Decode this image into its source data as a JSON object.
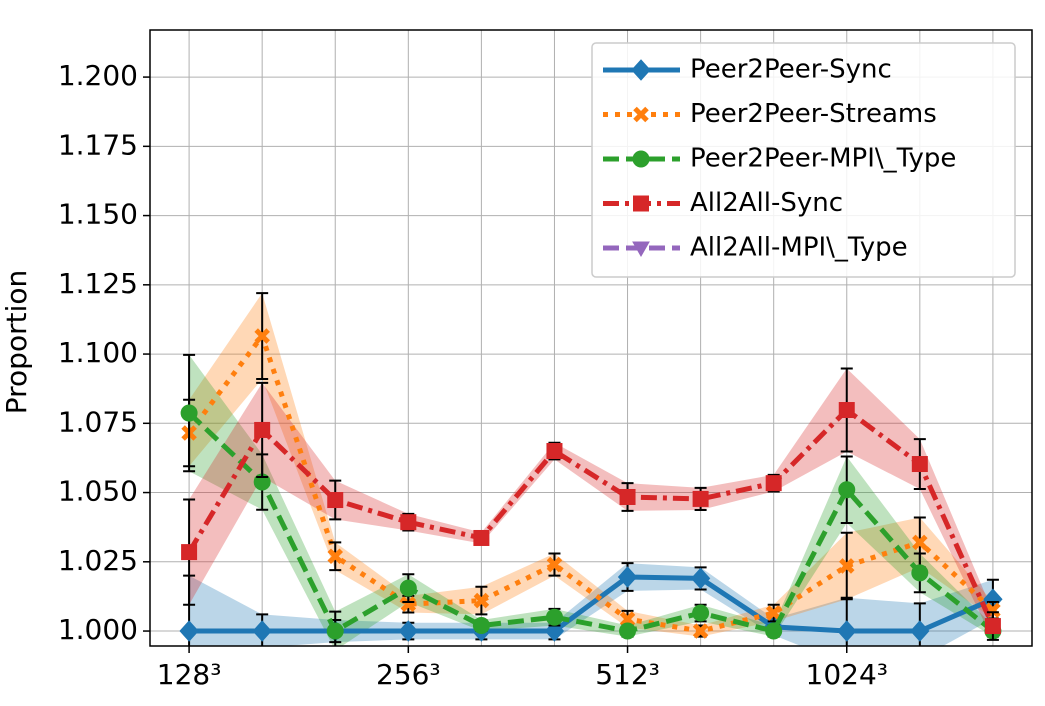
{
  "chart_data": {
    "type": "line",
    "ylabel": "Proportion",
    "categories": [
      "128³",
      null,
      null,
      "256³",
      null,
      null,
      "512³",
      null,
      null,
      "1024³",
      null,
      null
    ],
    "ylim": [
      0.9946,
      1.217
    ],
    "yticks": [
      {
        "value": 1.0,
        "label": "1.000"
      },
      {
        "value": 1.025,
        "label": "1.025"
      },
      {
        "value": 1.05,
        "label": "1.050"
      },
      {
        "value": 1.075,
        "label": "1.075"
      },
      {
        "value": 1.1,
        "label": "1.100"
      },
      {
        "value": 1.125,
        "label": "1.125"
      },
      {
        "value": 1.15,
        "label": "1.150"
      },
      {
        "value": 1.175,
        "label": "1.175"
      },
      {
        "value": 1.2,
        "label": "1.200"
      }
    ],
    "grid": true,
    "legend": "upper right",
    "series": [
      {
        "name": "Peer2Peer-Sync",
        "color": "#1f77b4",
        "linestyle": "solid",
        "marker": "diamond",
        "values": [
          1.0,
          1.0,
          1.0,
          1.0,
          1.0,
          1.0,
          1.0195,
          1.019,
          1.0015,
          1.0,
          1.0,
          1.0115
        ],
        "errors": [
          0.02,
          0.006,
          0.004,
          0.003,
          0.003,
          0.003,
          0.005,
          0.004,
          0.003,
          0.012,
          0.01,
          0.007
        ]
      },
      {
        "name": "Peer2Peer-Streams",
        "color": "#ff7f0e",
        "linestyle": "dotted",
        "marker": "x",
        "values": [
          1.0715,
          1.1065,
          1.027,
          1.0097,
          1.011,
          1.024,
          1.0043,
          1.0,
          1.0065,
          1.0235,
          1.032,
          1.0075
        ],
        "errors": [
          0.012,
          0.0155,
          0.005,
          0.003,
          0.005,
          0.004,
          0.003,
          0.002,
          0.003,
          0.012,
          0.009,
          0.003
        ]
      },
      {
        "name": "Peer2Peer-MPI\\_Type",
        "color": "#2ca02c",
        "linestyle": "dashed",
        "marker": "circle",
        "values": [
          1.0787,
          1.0538,
          1.0,
          1.0155,
          1.002,
          1.005,
          1.0,
          1.0065,
          1.0,
          1.051,
          1.021,
          1.0
        ],
        "errors": [
          0.021,
          0.01,
          0.007,
          0.005,
          0.002,
          0.003,
          0.002,
          0.003,
          0.002,
          0.012,
          0.007,
          0.002
        ]
      },
      {
        "name": "All2All-Sync",
        "color": "#d62728",
        "linestyle": "dashdot",
        "marker": "square",
        "values": [
          1.0285,
          1.0726,
          1.0473,
          1.0393,
          1.0336,
          1.065,
          1.0484,
          1.0477,
          1.0534,
          1.0798,
          1.0603,
          1.0018
        ],
        "errors": [
          0.019,
          0.017,
          0.007,
          0.003,
          0.002,
          0.003,
          0.005,
          0.004,
          0.003,
          0.015,
          0.009,
          0.005
        ]
      },
      {
        "name": "All2All-MPI\\_Type",
        "color": "#9467bd",
        "linestyle": "dashed",
        "marker": "triangle-down",
        "values": [
          null,
          null,
          null,
          null,
          null,
          null,
          null,
          null,
          null,
          null,
          null,
          null
        ],
        "errors": [
          null,
          null,
          null,
          null,
          null,
          null,
          null,
          null,
          null,
          null,
          null,
          null
        ]
      }
    ]
  }
}
